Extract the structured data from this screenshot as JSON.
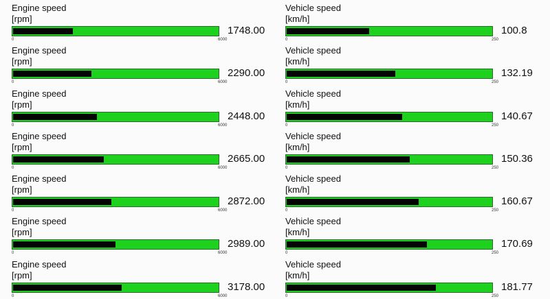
{
  "colors": {
    "bar_background": "#1fd11f",
    "bar_fill": "#050505"
  },
  "columns": [
    {
      "gauges": [
        {
          "title": "Engine speed",
          "unit": "[rpm]",
          "min": "0",
          "max": "6000",
          "value": "1748.00",
          "fraction": 0.2913
        },
        {
          "title": "Engine speed",
          "unit": "[rpm]",
          "min": "0",
          "max": "6000",
          "value": "2290.00",
          "fraction": 0.3817
        },
        {
          "title": "Engine speed",
          "unit": "[rpm]",
          "min": "0",
          "max": "6000",
          "value": "2448.00",
          "fraction": 0.408
        },
        {
          "title": "Engine speed",
          "unit": "[rpm]",
          "min": "0",
          "max": "6000",
          "value": "2665.00",
          "fraction": 0.4442
        },
        {
          "title": "Engine speed",
          "unit": "[rpm]",
          "min": "0",
          "max": "6000",
          "value": "2872.00",
          "fraction": 0.4787
        },
        {
          "title": "Engine speed",
          "unit": "[rpm]",
          "min": "0",
          "max": "6000",
          "value": "2989.00",
          "fraction": 0.4982
        },
        {
          "title": "Engine speed",
          "unit": "[rpm]",
          "min": "0",
          "max": "6000",
          "value": "3178.00",
          "fraction": 0.5297
        }
      ]
    },
    {
      "gauges": [
        {
          "title": "Vehicle speed",
          "unit": "[km/h]",
          "min": "0",
          "max": "250",
          "value": "100.8",
          "fraction": 0.4032
        },
        {
          "title": "Vehicle speed",
          "unit": "[km/h]",
          "min": "0",
          "max": "250",
          "value": "132.19",
          "fraction": 0.5288
        },
        {
          "title": "Vehicle speed",
          "unit": "[km/h]",
          "min": "0",
          "max": "250",
          "value": "140.67",
          "fraction": 0.5627
        },
        {
          "title": "Vehicle speed",
          "unit": "[km/h]",
          "min": "0",
          "max": "250",
          "value": "150.36",
          "fraction": 0.6014
        },
        {
          "title": "Vehicle speed",
          "unit": "[km/h]",
          "min": "0",
          "max": "250",
          "value": "160.67",
          "fraction": 0.6427
        },
        {
          "title": "Vehicle speed",
          "unit": "[km/h]",
          "min": "0",
          "max": "250",
          "value": "170.69",
          "fraction": 0.6828
        },
        {
          "title": "Vehicle speed",
          "unit": "[km/h]",
          "min": "0",
          "max": "250",
          "value": "181.77",
          "fraction": 0.7271
        }
      ]
    }
  ]
}
